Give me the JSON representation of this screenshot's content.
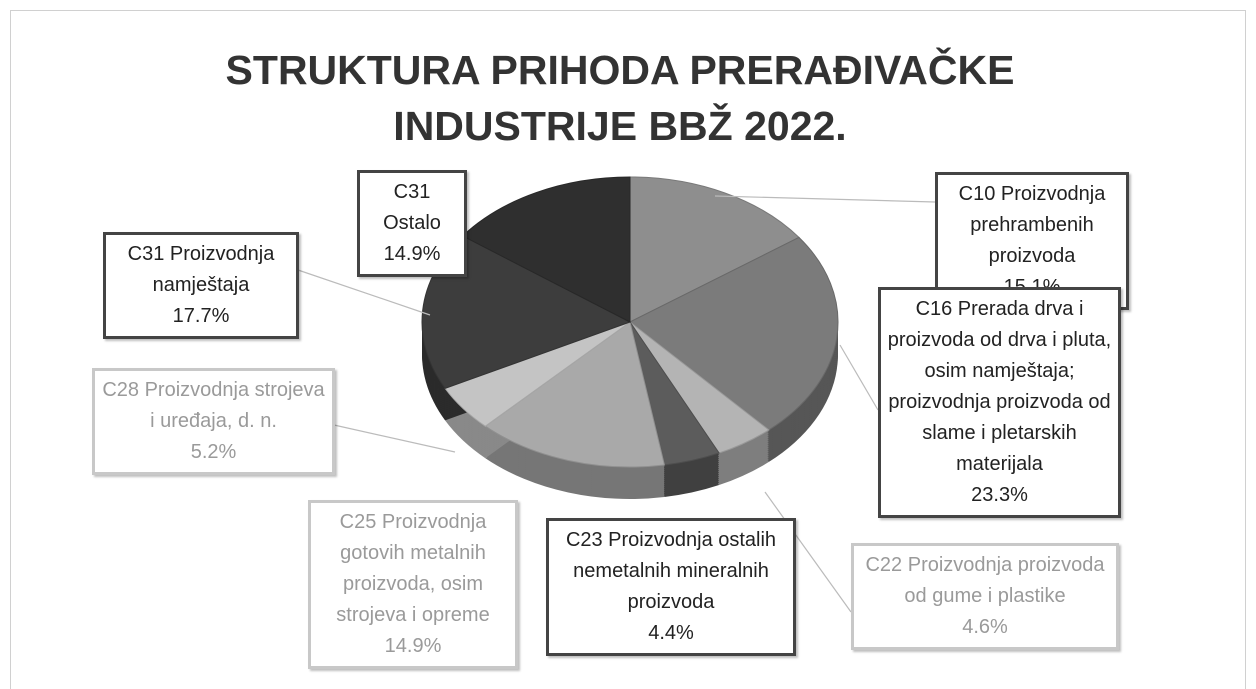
{
  "chart_data": {
    "type": "pie",
    "title": "STRUKTURA PRIHODA PRERAĐIVAČKE INDUSTRIJE BBŽ 2022.",
    "categories": [
      "C10 Proizvodnja prehrambenih proizvoda",
      "C16 Prerada drva i proizvoda od drva i pluta, osim namještaja; proizvodnja proizvoda od slame i pletarskih materijala",
      "C22 Proizvodnja proizvoda od gume i plastike",
      "C23 Proizvodnja ostalih nemetalnih mineralnih proizvoda",
      "C25 Proizvodnja gotovih metalnih proizvoda, osim strojeva i opreme",
      "C28 Proizvodnja strojeva i uređaja, d. n.",
      "C31 Proizvodnja namještaja",
      "C31 Ostalo"
    ],
    "values": [
      15.1,
      23.3,
      4.6,
      4.4,
      14.9,
      5.2,
      17.7,
      14.9
    ],
    "value_labels": [
      "15.1%",
      "23.3%",
      "4.6%",
      "4.4%",
      "14.9%",
      "5.2%",
      "17.7%",
      "14.9%"
    ],
    "colors": [
      "#8e8e8e",
      "#7b7b7b",
      "#b4b4b4",
      "#5c5c5c",
      "#a9a9a9",
      "#c4c4c4",
      "#3d3d3d",
      "#2f2f2f"
    ]
  }
}
